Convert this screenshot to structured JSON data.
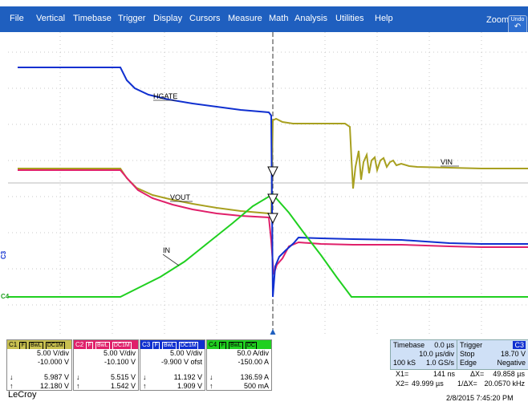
{
  "menu": {
    "items": [
      "File",
      "Vertical",
      "Timebase",
      "Trigger",
      "Display",
      "Cursors",
      "Measure",
      "Math",
      "Analysis",
      "Utilities",
      "Help"
    ],
    "zoom_label": "Zoom",
    "undo_label": "Undo"
  },
  "colors": {
    "menubar": "#1f5fbf",
    "c1": "#a8a020",
    "c2": "#e0206a",
    "c3": "#1030d0",
    "c4": "#20d020"
  },
  "trace_labels": {
    "hgate": "HGATE",
    "vin": "VIN",
    "vout": "VOUT",
    "in": "IN"
  },
  "ground_markers": {
    "c3": "C3",
    "c4": "C4"
  },
  "channels": [
    {
      "name": "C1",
      "tag1": "F",
      "tag2": "BwL",
      "tag3": "DC1M",
      "vdiv": "5.00 V/div",
      "offset": "-10.000 V",
      "val1": "5.987 V",
      "val2": "12.180 V",
      "color": "#c8c050"
    },
    {
      "name": "C2",
      "tag1": "F",
      "tag2": "BwL",
      "tag3": "DC1M",
      "vdiv": "5.00 V/div",
      "offset": "-10.100 V",
      "val1": "5.515 V",
      "val2": "1.542 V",
      "color": "#e0206a"
    },
    {
      "name": "C3",
      "tag1": "F",
      "tag2": "BwL",
      "tag3": "DC1M",
      "vdiv": "5.00 V/div",
      "offset": "-9.900 V ofst",
      "val1": "11.192 V",
      "val2": "1.909 V",
      "color": "#1030d0"
    },
    {
      "name": "C4",
      "tag1": "F",
      "tag2": "BwL",
      "tag3": "DC",
      "vdiv": "50.0 A/div",
      "offset": "-150.00 A",
      "val1": "136.59 A",
      "val2": "500 mA",
      "color": "#20d020"
    }
  ],
  "arrows": {
    "down": "↓",
    "up": "↑"
  },
  "timebase": {
    "label": "Timebase",
    "delay": "0.0 µs",
    "tdiv": "10.0 µs/div",
    "samples": "100 kS",
    "rate": "1.0 GS/s"
  },
  "trigger": {
    "label": "Trigger",
    "source": "C3",
    "mode": "Stop",
    "level": "18.70 V",
    "type": "Edge",
    "slope": "Negative"
  },
  "cursors": {
    "x1": "X1=",
    "x1v": "141 ns",
    "dx": "ΔX=",
    "dxv": "49.858 µs",
    "x2": "X2=",
    "x2v": "49.999 µs",
    "idx": "1/ΔX=",
    "idxv": "20.0570 kHz"
  },
  "brand": "LeCroy",
  "datetime": "2/8/2015 7:45:20 PM"
}
